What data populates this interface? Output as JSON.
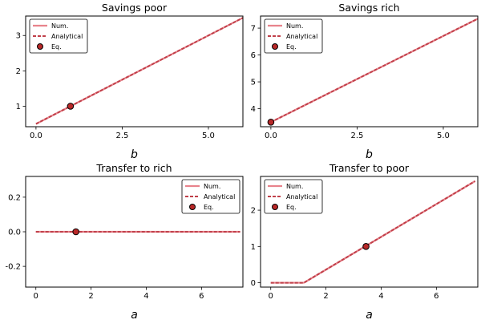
{
  "chart_data": [
    {
      "type": "line",
      "title": "Savings poor",
      "xlabel": "b",
      "ylabel": "",
      "xlim": [
        -0.3,
        6.0
      ],
      "ylim": [
        0.42,
        3.55
      ],
      "xticks": [
        0.0,
        2.5,
        5.0
      ],
      "yticks": [
        1,
        2,
        3
      ],
      "legend_placement": "upper-left",
      "series": [
        {
          "name": "Num.",
          "style": "solid",
          "x": [
            0.0,
            6.0
          ],
          "y": [
            0.5,
            3.5
          ]
        },
        {
          "name": "Analytical",
          "style": "dashed",
          "x": [
            0.0,
            6.0
          ],
          "y": [
            0.5,
            3.5
          ]
        },
        {
          "name": "Eq.",
          "style": "marker",
          "x": [
            1.0
          ],
          "y": [
            1.0
          ]
        }
      ]
    },
    {
      "type": "line",
      "title": "Savings rich",
      "xlabel": "b",
      "ylabel": "",
      "xlim": [
        -0.3,
        6.0
      ],
      "ylim": [
        3.33,
        7.45
      ],
      "xticks": [
        0.0,
        2.5,
        5.0
      ],
      "yticks": [
        4,
        5,
        6,
        7
      ],
      "legend_placement": "upper-left",
      "series": [
        {
          "name": "Num.",
          "style": "solid",
          "x": [
            0.0,
            6.0
          ],
          "y": [
            3.5,
            7.35
          ]
        },
        {
          "name": "Analytical",
          "style": "dashed",
          "x": [
            0.0,
            6.0
          ],
          "y": [
            3.5,
            7.35
          ]
        },
        {
          "name": "Eq.",
          "style": "marker",
          "x": [
            0.0
          ],
          "y": [
            3.5
          ]
        }
      ]
    },
    {
      "type": "line",
      "title": "Transfer to rich",
      "xlabel": "a",
      "ylabel": "",
      "xlim": [
        -0.37,
        7.5
      ],
      "ylim": [
        -0.32,
        0.32
      ],
      "xticks": [
        0,
        2,
        4,
        6
      ],
      "yticks": [
        -0.2,
        0.0,
        0.2
      ],
      "legend_placement": "upper-right",
      "series": [
        {
          "name": "Num.",
          "style": "solid",
          "x": [
            0.0,
            7.4
          ],
          "y": [
            0.0,
            0.0
          ]
        },
        {
          "name": "Analytical",
          "style": "dashed",
          "x": [
            0.0,
            7.4
          ],
          "y": [
            0.0,
            0.0
          ]
        },
        {
          "name": "Eq.",
          "style": "marker",
          "x": [
            1.45
          ],
          "y": [
            0.0
          ]
        }
      ]
    },
    {
      "type": "line",
      "title": "Transfer to poor",
      "xlabel": "a",
      "ylabel": "",
      "xlim": [
        -0.37,
        7.5
      ],
      "ylim": [
        -0.12,
        2.93
      ],
      "xticks": [
        0,
        2,
        4,
        6
      ],
      "yticks": [
        0,
        1,
        2
      ],
      "legend_placement": "upper-left",
      "series": [
        {
          "name": "Num.",
          "style": "solid",
          "x": [
            0.0,
            1.2,
            7.4
          ],
          "y": [
            0.0,
            0.0,
            2.8
          ]
        },
        {
          "name": "Analytical",
          "style": "dashed",
          "x": [
            0.0,
            1.2,
            7.4
          ],
          "y": [
            0.0,
            0.0,
            2.8
          ]
        },
        {
          "name": "Eq.",
          "style": "marker",
          "x": [
            3.45
          ],
          "y": [
            1.0
          ]
        }
      ]
    }
  ],
  "colors": {
    "num_line": "#e8838c",
    "analytical_line": "#c0404a",
    "eq_marker_fill": "#b82828",
    "eq_marker_edge": "#000000"
  }
}
